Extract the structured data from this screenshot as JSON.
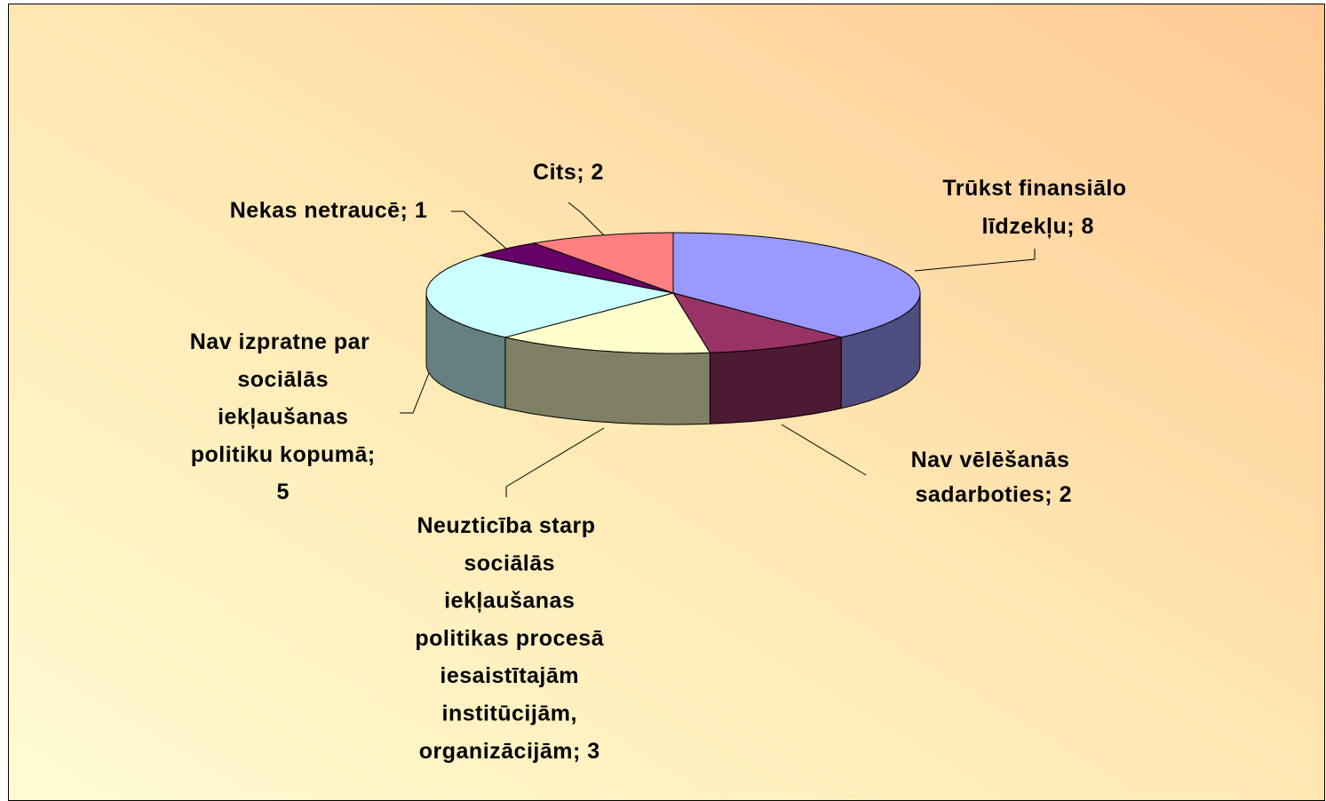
{
  "chart_data": {
    "type": "pie",
    "three_d": true,
    "values": [
      8,
      2,
      3,
      5,
      1,
      2
    ],
    "value_labels": [
      "Trūkst finansiālo līdzekļu; 8",
      "Nav vēlēšanās sadarboties; 2",
      "Neuzticība starp sociālās iekļaušanas politikas procesā iesaistītajām institūcijām, organizācijām; 3",
      "Nav izpratne par sociālās iekļaušanas politiku kopumā; 5",
      "Nekas netraucē; 1",
      "Cits; 2"
    ],
    "colors": [
      "#9999ff",
      "#993366",
      "#ffffcc",
      "#ccffff",
      "#660066",
      "#ff8080"
    ]
  }
}
